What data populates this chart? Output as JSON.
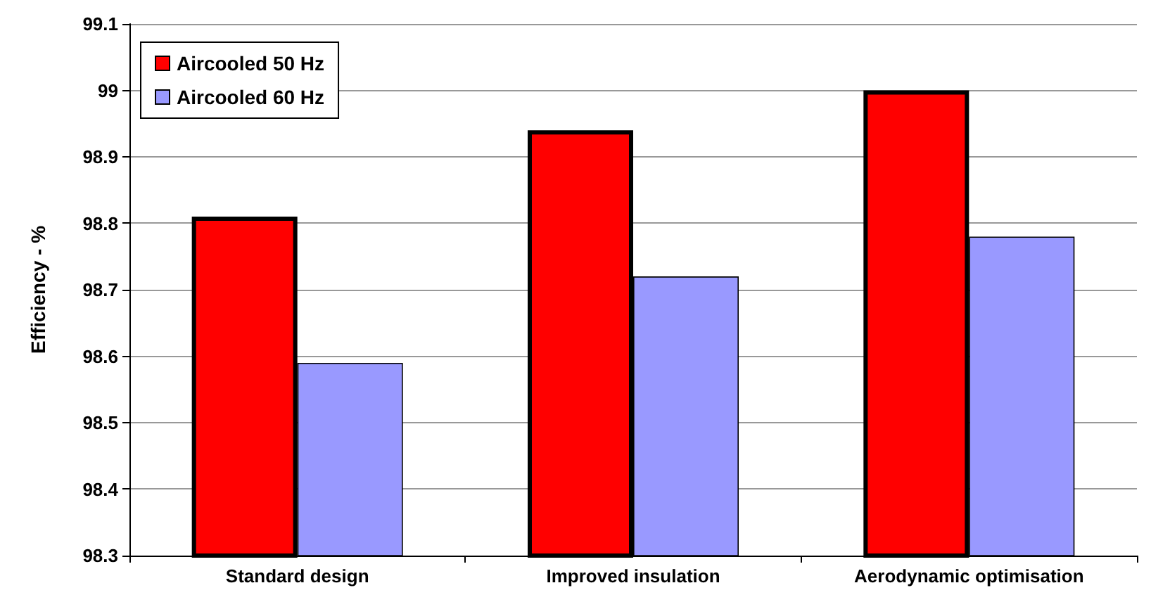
{
  "chart_data": {
    "type": "bar",
    "ylabel": "Efficiency - %",
    "categories": [
      "Standard design",
      "Improved insulation",
      "Aerodynamic optimisation"
    ],
    "series": [
      {
        "name": "Aircooled 50 Hz",
        "color": "#ff0000",
        "values": [
          98.81,
          98.94,
          99.0
        ]
      },
      {
        "name": "Aircooled 60 Hz",
        "color": "#9999ff",
        "values": [
          98.59,
          98.72,
          98.78
        ]
      }
    ],
    "ylim": [
      98.3,
      99.1
    ],
    "yticks": [
      98.3,
      98.4,
      98.5,
      98.6,
      98.7,
      98.8,
      98.9,
      99,
      99.1
    ],
    "grid": "y",
    "legend": "top left"
  }
}
